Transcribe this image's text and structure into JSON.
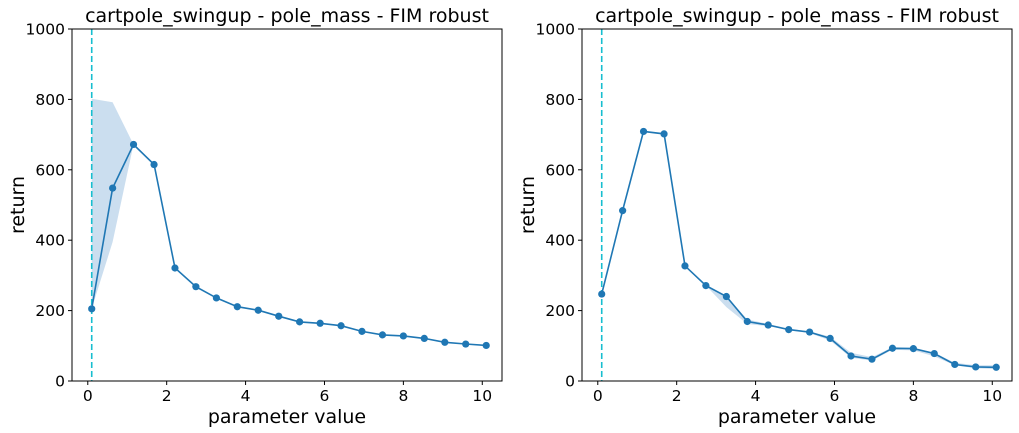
{
  "chart_data": [
    {
      "type": "line",
      "title": "cartpole_swingup - pole_mass - FIM robust",
      "xlabel": "parameter value",
      "ylabel": "return",
      "xlim": [
        -0.4,
        10.5
      ],
      "ylim": [
        0,
        1000
      ],
      "xticks": [
        0,
        2,
        4,
        6,
        8,
        10
      ],
      "yticks": [
        0,
        200,
        400,
        600,
        800,
        1000
      ],
      "vline_x": 0.1,
      "series": [
        {
          "name": "return",
          "x": [
            0.1,
            0.63,
            1.16,
            1.68,
            2.21,
            2.74,
            3.26,
            3.79,
            4.32,
            4.84,
            5.37,
            5.89,
            6.42,
            6.95,
            7.47,
            8.0,
            8.53,
            9.05,
            9.58,
            10.1
          ],
          "y": [
            205,
            548,
            672,
            615,
            321,
            268,
            236,
            211,
            201,
            184,
            168,
            164,
            157,
            141,
            131,
            128,
            121,
            110,
            105,
            101
          ],
          "band_upper": [
            802,
            792,
            672,
            615,
            321,
            268,
            236,
            211,
            201,
            184,
            168,
            164,
            157,
            141,
            131,
            128,
            121,
            110,
            105,
            101
          ],
          "band_lower": [
            205,
            395,
            672,
            615,
            321,
            268,
            236,
            211,
            201,
            184,
            168,
            164,
            157,
            141,
            131,
            128,
            121,
            110,
            105,
            101
          ]
        }
      ],
      "colors": {
        "line": "#1f77b4",
        "band": "#b9d3ea",
        "vline": "#17becf"
      }
    },
    {
      "type": "line",
      "title": "cartpole_swingup - pole_mass - FIM robust",
      "xlabel": "parameter value",
      "ylabel": "return",
      "xlim": [
        -0.4,
        10.5
      ],
      "ylim": [
        0,
        1000
      ],
      "xticks": [
        0,
        2,
        4,
        6,
        8,
        10
      ],
      "yticks": [
        0,
        200,
        400,
        600,
        800,
        1000
      ],
      "vline_x": 0.1,
      "series": [
        {
          "name": "return",
          "x": [
            0.1,
            0.63,
            1.16,
            1.68,
            2.21,
            2.74,
            3.26,
            3.79,
            4.32,
            4.84,
            5.37,
            5.89,
            6.42,
            6.95,
            7.47,
            8.0,
            8.53,
            9.05,
            9.58,
            10.1
          ],
          "y": [
            247,
            484,
            709,
            702,
            327,
            271,
            240,
            169,
            159,
            146,
            139,
            121,
            71,
            62,
            93,
            92,
            78,
            47,
            40,
            39
          ],
          "band_upper": [
            247,
            484,
            709,
            702,
            327,
            271,
            240,
            175,
            162,
            149,
            141,
            126,
            80,
            68,
            96,
            95,
            80,
            52,
            45,
            45
          ],
          "band_lower": [
            247,
            484,
            709,
            702,
            327,
            271,
            210,
            162,
            156,
            144,
            136,
            115,
            66,
            58,
            89,
            87,
            70,
            45,
            36,
            34
          ]
        }
      ],
      "colors": {
        "line": "#1f77b4",
        "band": "#b9d3ea",
        "vline": "#17becf"
      }
    }
  ]
}
